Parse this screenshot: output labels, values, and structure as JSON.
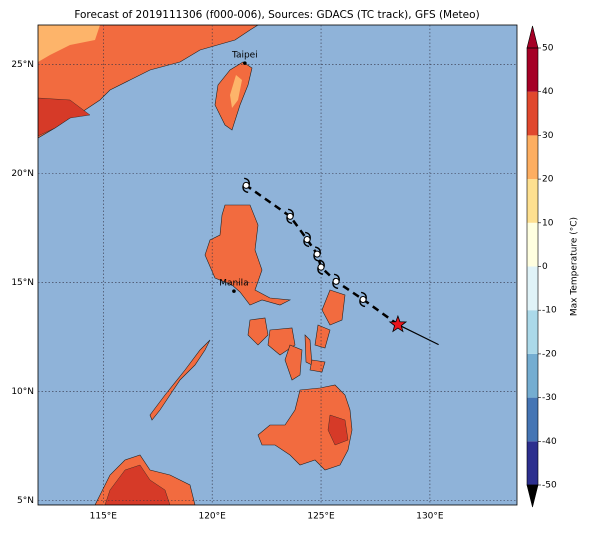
{
  "title": "Forecast of 2019111306 (f000-006), Sources: GDACS (TC track), GFS (Meteo)",
  "map": {
    "lonlim": [
      112,
      134
    ],
    "latlim": [
      4.8,
      26.8
    ],
    "lon_ticks": [
      {
        "value": 115,
        "label": "115°E"
      },
      {
        "value": 120,
        "label": "120°E"
      },
      {
        "value": 125,
        "label": "125°E"
      },
      {
        "value": 130,
        "label": "130°E"
      }
    ],
    "lat_ticks": [
      {
        "value": 5,
        "label": "5°N"
      },
      {
        "value": 10,
        "label": "10°N"
      },
      {
        "value": 15,
        "label": "15°N"
      },
      {
        "value": 20,
        "label": "20°N"
      },
      {
        "value": 25,
        "label": "25°N"
      }
    ],
    "cities": [
      {
        "name": "Taipei",
        "lon": 121.5,
        "lat": 25.05
      },
      {
        "name": "Manila",
        "lon": 121.0,
        "lat": 14.6
      }
    ],
    "storm": {
      "lon": 128.53,
      "lat": 13.07
    },
    "past_track": {
      "lon": [
        128.53,
        130.4
      ],
      "lat": [
        13.07,
        12.15
      ]
    },
    "forecast_track": {
      "lon": [
        128.53,
        126.93,
        125.69,
        125.0,
        124.82,
        124.36,
        123.58,
        121.56
      ],
      "lat": [
        13.07,
        14.22,
        15.05,
        15.7,
        16.3,
        16.97,
        18.03,
        19.45
      ]
    }
  },
  "colorbar": {
    "label": "Max Temperature (°C)",
    "lim": [
      -50,
      50
    ],
    "ticks": [
      -50,
      -40,
      -30,
      -20,
      -10,
      0,
      10,
      20,
      30,
      40,
      50
    ],
    "colors": [
      "#2c2f8e",
      "#4575b4",
      "#74add1",
      "#abd9e9",
      "#e0f3f8",
      "#ffffe0",
      "#fee090",
      "#fdae61",
      "#e0482e",
      "#a50026"
    ]
  }
}
